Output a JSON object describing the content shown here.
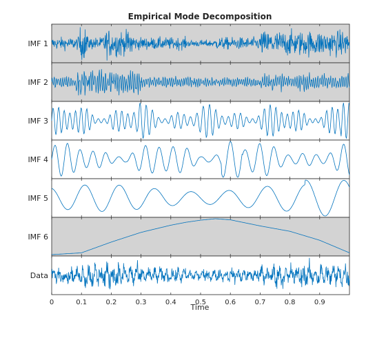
{
  "chart_data": {
    "type": "line",
    "title": "Empirical Mode Decomposition",
    "xlabel": "Time",
    "xlim": [
      0,
      1
    ],
    "x_ticks": [
      "0",
      "0.1",
      "0.2",
      "0.3",
      "0.4",
      "0.5",
      "0.6",
      "0.7",
      "0.8",
      "0.9"
    ],
    "grid": false,
    "line_color": "#0072BD",
    "shaded_background_color": "#D3D3D3",
    "series": [
      {
        "name": "IMF 1",
        "shaded": true,
        "description": "high-frequency noise-like oscillation, bursts near t=0.1 and t=0.25, strong noisy segment after t=0.7",
        "segments": [
          [
            0.0,
            0.4
          ],
          [
            0.1,
            0.9
          ],
          [
            0.25,
            0.95
          ],
          [
            0.32,
            0.3
          ],
          [
            0.5,
            0.2
          ],
          [
            0.7,
            0.75
          ],
          [
            1.0,
            0.7
          ]
        ]
      },
      {
        "name": "IMF 2",
        "shaded": true,
        "description": "medium-high frequency oscillation, large burst around t=0.1–0.3",
        "segments": [
          [
            0.0,
            0.4
          ],
          [
            0.1,
            0.9
          ],
          [
            0.28,
            0.8
          ],
          [
            0.32,
            0.35
          ],
          [
            0.6,
            0.3
          ],
          [
            0.75,
            0.45
          ],
          [
            1.0,
            0.5
          ]
        ]
      },
      {
        "name": "IMF 3",
        "shaded": false,
        "description": "oscillation with roughly 50 cycles, varying amplitude",
        "cycles": 50
      },
      {
        "name": "IMF 4",
        "shaded": false,
        "description": "oscillation with roughly 22 cycles, spike near t=0.6",
        "cycles": 22
      },
      {
        "name": "IMF 5",
        "shaded": false,
        "description": "slow oscillation with roughly 8 cycles, largest peak near t=0.95",
        "peaks_t": [
          0.03,
          0.16,
          0.27,
          0.46,
          0.68,
          0.76,
          0.88,
          0.96
        ],
        "troughs_t": [
          0.0,
          0.1,
          0.22,
          0.4,
          0.5,
          0.72,
          0.82,
          0.9,
          0.99
        ]
      },
      {
        "name": "IMF 6",
        "shaded": true,
        "description": "residual trend: rises from 0 to a maximum near t=0.55 then declines",
        "points": [
          [
            0.0,
            0.0
          ],
          [
            0.1,
            0.05
          ],
          [
            0.2,
            0.35
          ],
          [
            0.3,
            0.62
          ],
          [
            0.4,
            0.82
          ],
          [
            0.45,
            0.9
          ],
          [
            0.5,
            0.96
          ],
          [
            0.55,
            1.0
          ],
          [
            0.6,
            0.97
          ],
          [
            0.7,
            0.8
          ],
          [
            0.8,
            0.65
          ],
          [
            0.9,
            0.4
          ],
          [
            1.0,
            0.05
          ]
        ]
      },
      {
        "name": "Data",
        "shaded": false,
        "description": "original noisy signal (sum of all IMFs)"
      }
    ]
  }
}
